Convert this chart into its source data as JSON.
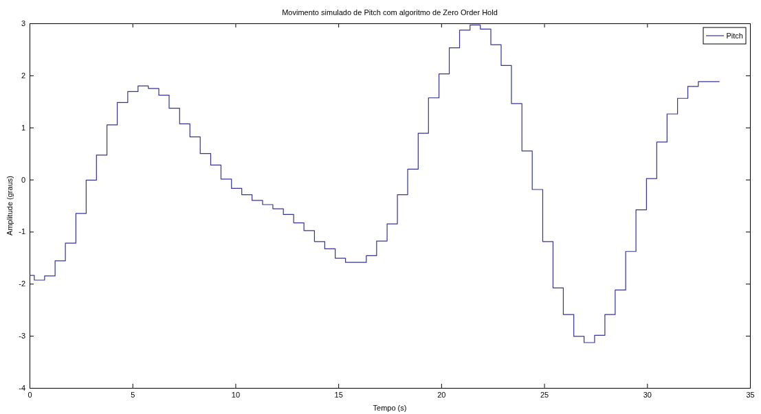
{
  "chart_data": {
    "type": "step",
    "title": "Movimento simulado de Pitch com algoritmo de Zero Order Hold",
    "xlabel": "Tempo (s)",
    "ylabel": "Amplitude (graus)",
    "xlim": [
      0,
      35
    ],
    "xticks": [
      0,
      5,
      10,
      15,
      20,
      25,
      30,
      35
    ],
    "ylim": [
      -4,
      3
    ],
    "yticks": [
      -4,
      -3,
      -2,
      -1,
      0,
      1,
      2,
      3
    ],
    "legend": "top right",
    "series": [
      {
        "name": "Pitch",
        "color": "#33339a",
        "x": [
          0,
          0.23,
          0.73,
          1.24,
          1.74,
          2.25,
          2.75,
          3.25,
          3.76,
          4.26,
          4.77,
          5.27,
          5.77,
          6.28,
          6.78,
          7.29,
          7.79,
          8.29,
          8.8,
          9.3,
          9.81,
          10.31,
          10.81,
          11.32,
          11.82,
          12.33,
          12.83,
          13.33,
          13.84,
          14.34,
          14.85,
          15.35,
          15.85,
          16.36,
          16.86,
          17.37,
          17.87,
          18.37,
          18.88,
          19.38,
          19.89,
          20.39,
          20.89,
          21.4,
          21.9,
          22.41,
          22.91,
          23.41,
          23.92,
          24.42,
          24.93,
          25.43,
          25.93,
          26.44,
          26.94,
          27.45,
          27.95,
          28.45,
          28.96,
          29.46,
          29.97,
          30.47,
          30.97,
          31.48,
          31.98,
          32.49,
          33.52
        ],
        "values": [
          -1.84,
          -1.93,
          -1.85,
          -1.56,
          -1.22,
          -0.65,
          -0.01,
          0.47,
          1.05,
          1.48,
          1.69,
          1.8,
          1.75,
          1.62,
          1.37,
          1.07,
          0.82,
          0.5,
          0.28,
          0.01,
          -0.17,
          -0.29,
          -0.4,
          -0.48,
          -0.56,
          -0.67,
          -0.83,
          -0.98,
          -1.19,
          -1.33,
          -1.51,
          -1.59,
          -1.59,
          -1.46,
          -1.18,
          -0.85,
          -0.29,
          0.2,
          0.89,
          1.57,
          2.03,
          2.53,
          2.87,
          2.97,
          2.89,
          2.59,
          2.19,
          1.46,
          0.55,
          -0.19,
          -1.19,
          -2.08,
          -2.59,
          -3.01,
          -3.13,
          -2.99,
          -2.59,
          -2.12,
          -1.38,
          -0.58,
          0.02,
          0.72,
          1.26,
          1.56,
          1.79,
          1.88,
          1.88
        ]
      }
    ]
  }
}
